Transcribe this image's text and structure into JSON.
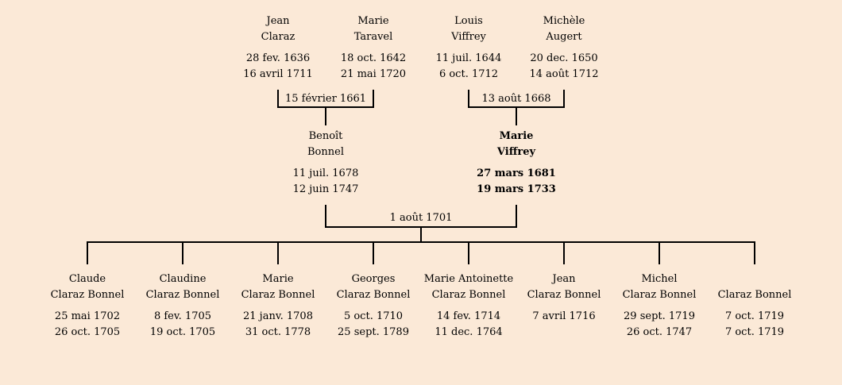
{
  "background_color": "#fbe9d7",
  "line_color": "#000000",
  "grandparents": [
    {
      "first": "Jean",
      "last": "Claraz",
      "birth": "28 fev. 1636",
      "death": "16 avril 1711"
    },
    {
      "first": "Marie",
      "last": "Taravel",
      "birth": "18 oct. 1642",
      "death": "21 mai 1720"
    },
    {
      "first": "Louis",
      "last": "Viffrey",
      "birth": "11 juil. 1644",
      "death": "6 oct. 1712"
    },
    {
      "first": "Michèle",
      "last": "Augert",
      "birth": "20 dec. 1650",
      "death": "14 août 1712"
    }
  ],
  "grandparent_unions": [
    {
      "date": "15 février 1661"
    },
    {
      "date": "13 août 1668"
    }
  ],
  "parents": [
    {
      "first": "Benoît",
      "last": "Bonnel",
      "birth": "11 juil. 1678",
      "death": "12 juin 1747",
      "highlight": false
    },
    {
      "first": "Marie",
      "last": "Viffrey",
      "birth": "27 mars 1681",
      "death": "19 mars 1733",
      "highlight": true
    }
  ],
  "parent_union": {
    "date": "1 août 1701"
  },
  "children": [
    {
      "first": "Claude",
      "last": "Claraz Bonnel",
      "birth": "25 mai 1702",
      "death": "26 oct. 1705"
    },
    {
      "first": "Claudine",
      "last": "Claraz Bonnel",
      "birth": "8 fev. 1705",
      "death": "19 oct. 1705"
    },
    {
      "first": "Marie",
      "last": "Claraz Bonnel",
      "birth": "21 janv. 1708",
      "death": "31 oct. 1778"
    },
    {
      "first": "Georges",
      "last": "Claraz Bonnel",
      "birth": "5 oct. 1710",
      "death": "25 sept. 1789"
    },
    {
      "first": "Marie Antoinette",
      "last": "Claraz Bonnel",
      "birth": "14 fev. 1714",
      "death": "11 dec. 1764"
    },
    {
      "first": "Jean",
      "last": "Claraz Bonnel",
      "birth": "7 avril 1716",
      "death": ""
    },
    {
      "first": "Michel",
      "last": "Claraz Bonnel",
      "birth": "29 sept. 1719",
      "death": "26 oct. 1747"
    },
    {
      "first": "",
      "last": "Claraz Bonnel",
      "birth": "7 oct. 1719",
      "death": "7 oct. 1719"
    }
  ]
}
